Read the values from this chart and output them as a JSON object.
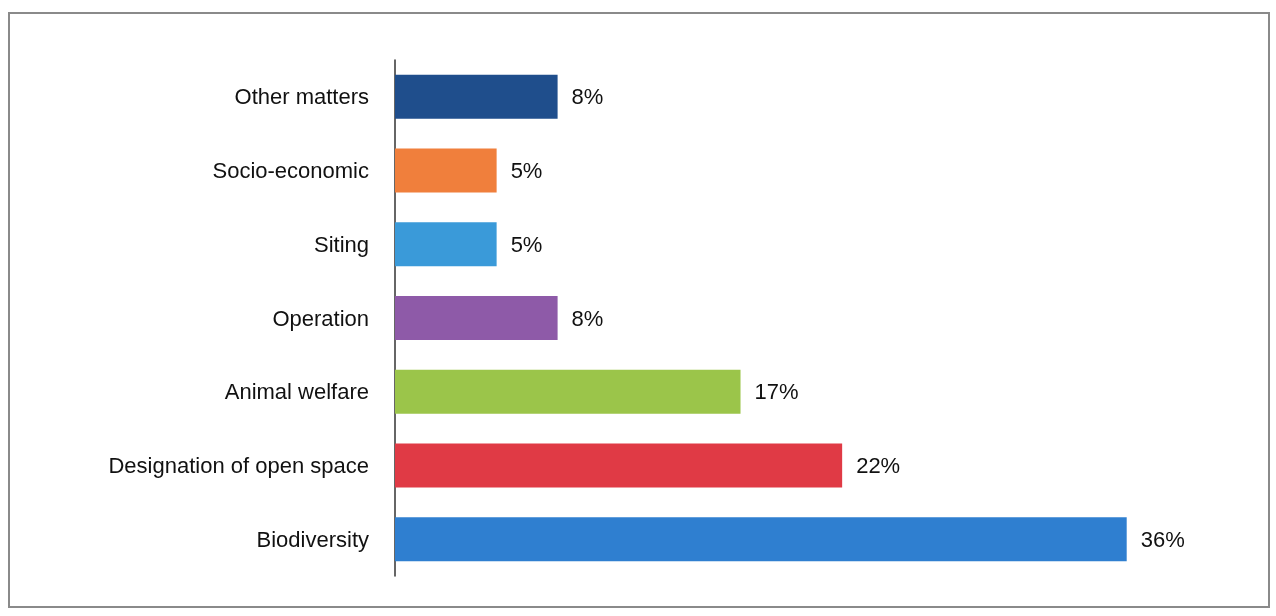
{
  "chart_data": {
    "type": "bar",
    "orientation": "horizontal",
    "categories": [
      "Other matters",
      "Socio-economic",
      "Siting",
      "Operation",
      "Animal welfare",
      "Designation of open space",
      "Biodiversity"
    ],
    "values": [
      8,
      5,
      5,
      8,
      17,
      22,
      36
    ],
    "value_labels": [
      "8%",
      "5%",
      "5%",
      "8%",
      "17%",
      "22%",
      "36%"
    ],
    "colors": [
      "#1f4e8c",
      "#f07f3c",
      "#3a9ad9",
      "#8e5aa8",
      "#9bc54a",
      "#e03a45",
      "#2f7fd0"
    ]
  }
}
